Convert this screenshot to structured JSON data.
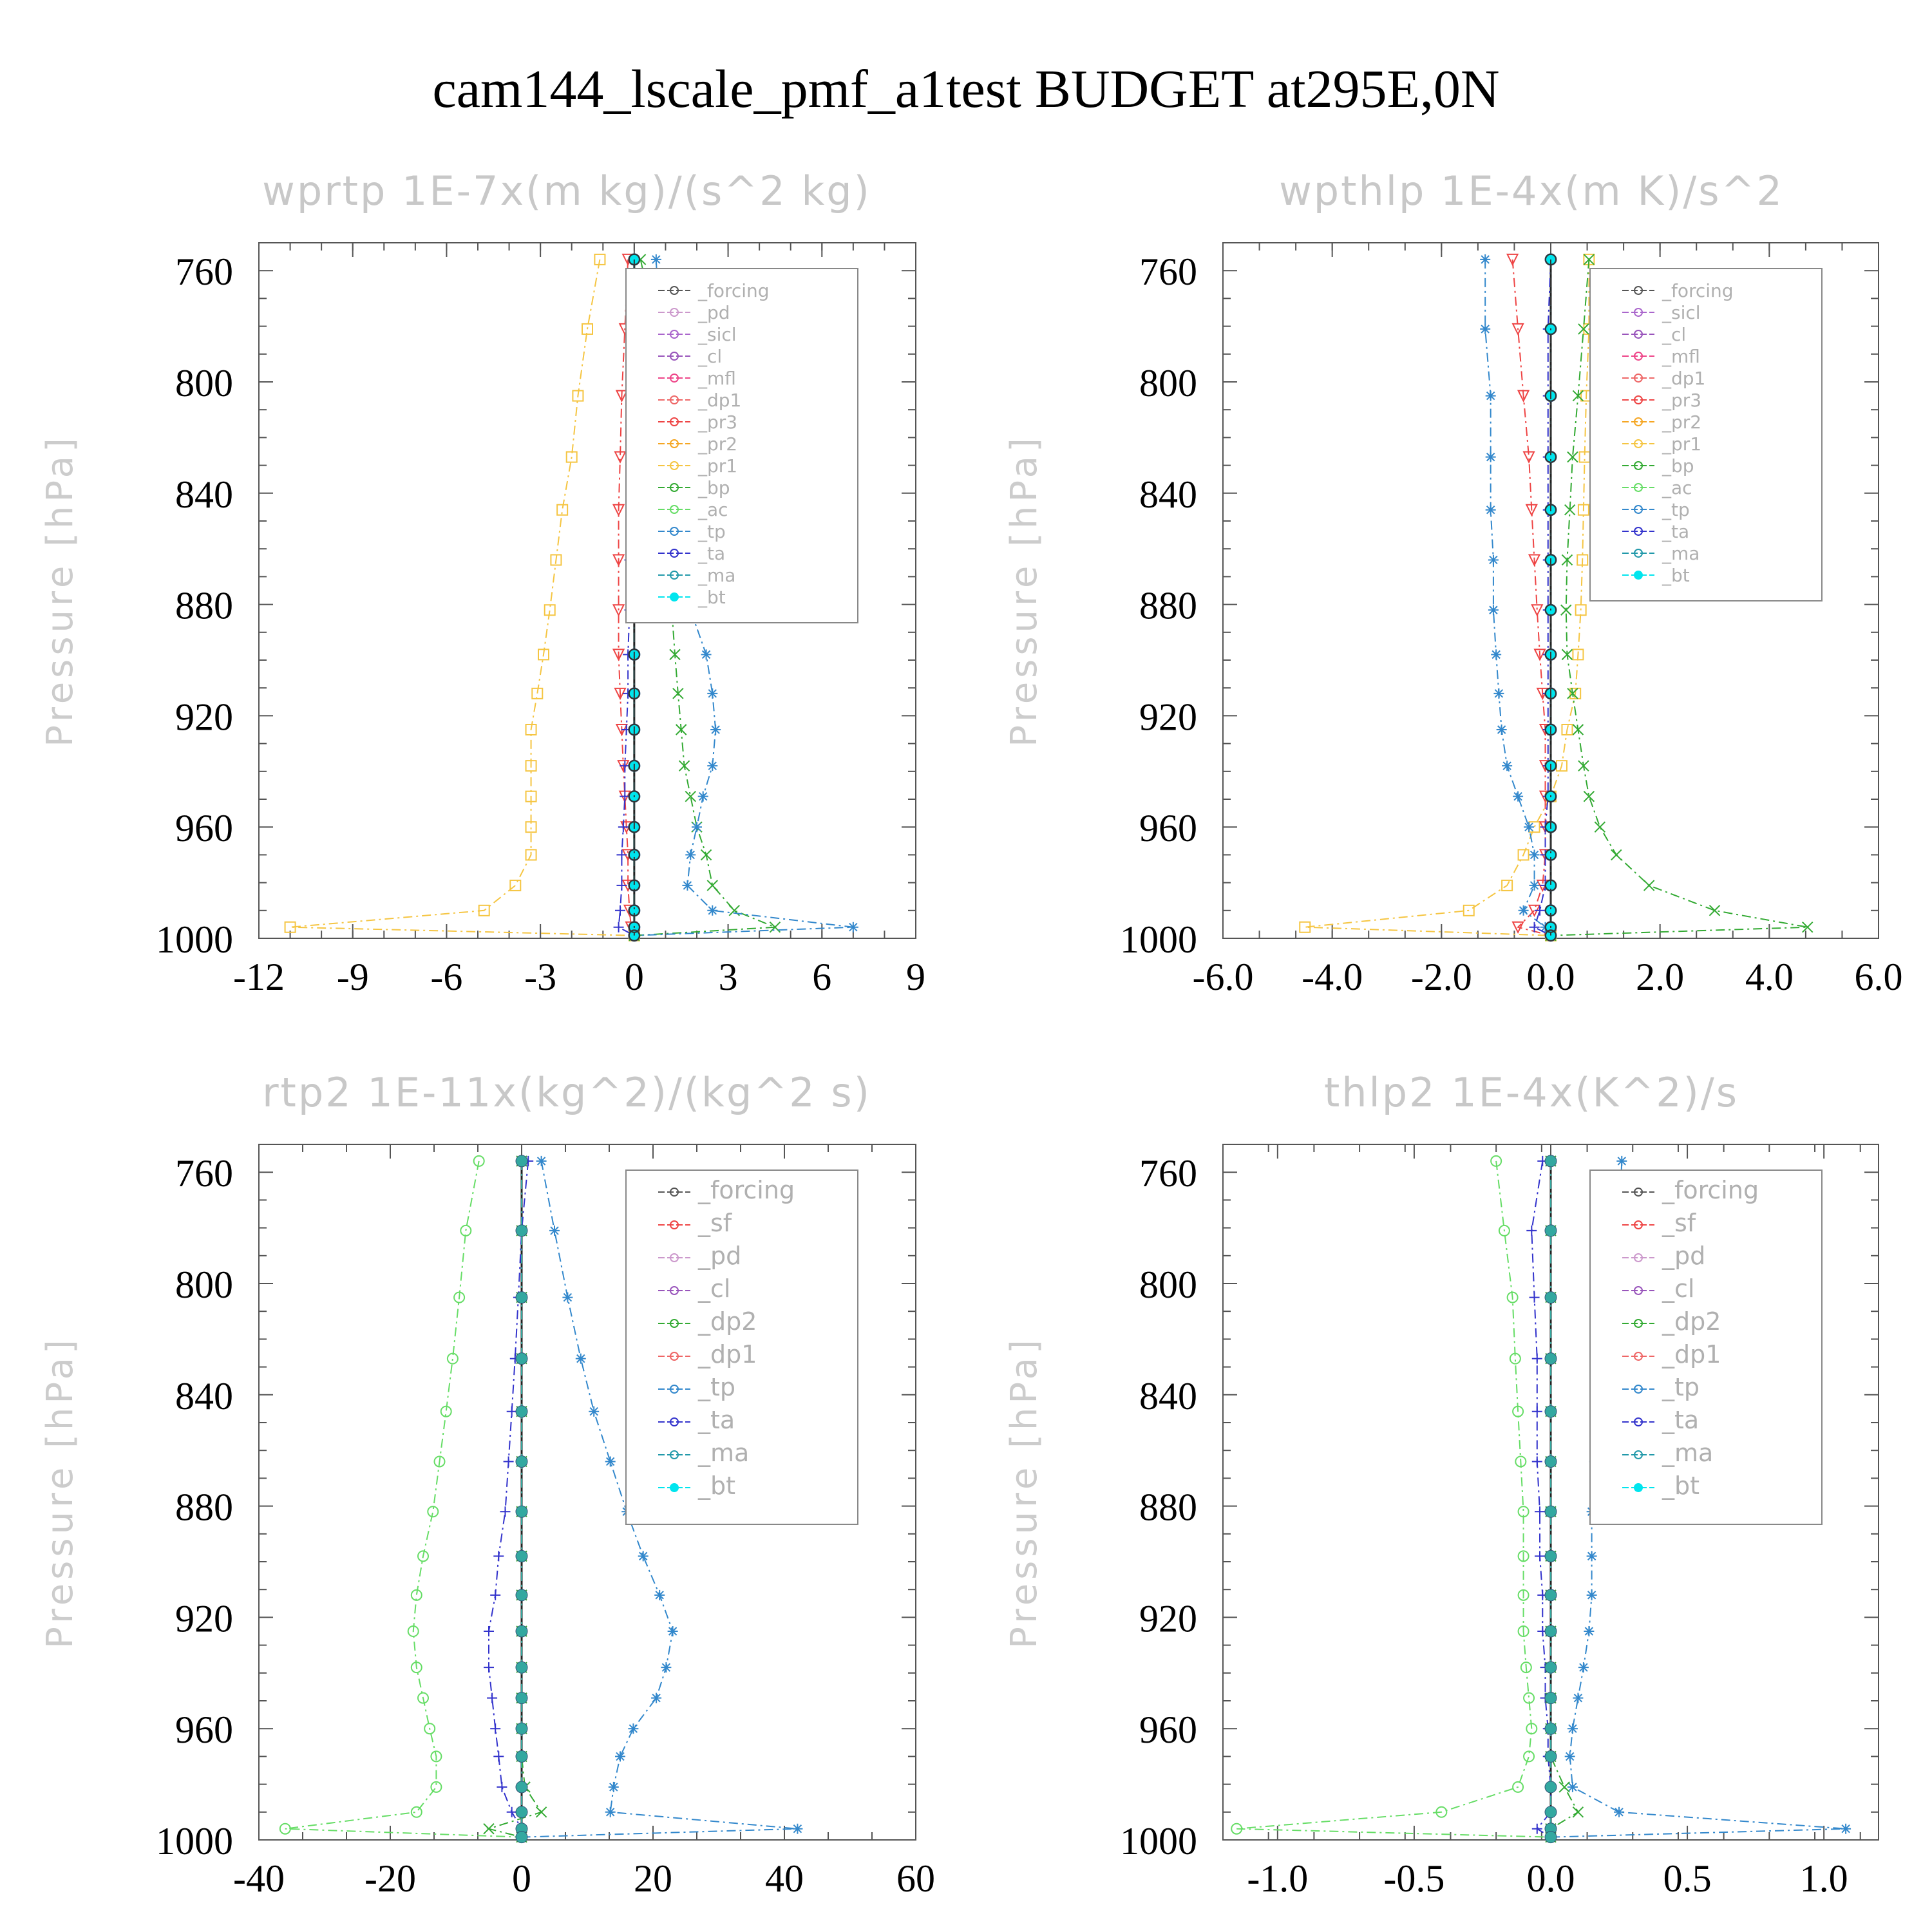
{
  "title": "cam144_lscale_pmf_a1test  BUDGET at295E,0N",
  "chart_data": [
    {
      "type": "line",
      "title": "wprtp   1E-7x(m kg)/(s^2 kg)",
      "ylabel": "Pressure [hPa]",
      "ylim": [
        1000,
        750
      ],
      "yticks": [
        "760",
        "800",
        "840",
        "880",
        "920",
        "960",
        "1000"
      ],
      "xlim": [
        -12,
        9
      ],
      "xticks": [
        "-12",
        "-9",
        "-6",
        "-3",
        "0",
        "3",
        "6",
        "9"
      ],
      "y": [
        756,
        781,
        805,
        827,
        846,
        864,
        882,
        898,
        912,
        925,
        938,
        949,
        960,
        970,
        981,
        990,
        996,
        999
      ],
      "legend": [
        "_forcing",
        "_pd",
        "_sicl",
        "_cl",
        "_mfl",
        "_dp1",
        "_pr3",
        "_pr2",
        "_pr1",
        "_bp",
        "_ac",
        "_tp",
        "_ta",
        "_ma",
        "_bt"
      ],
      "series": [
        {
          "name": "_pr1",
          "color": "#f5c542",
          "marker": "square",
          "values": [
            -1.1,
            -1.5,
            -1.8,
            -2.0,
            -2.3,
            -2.5,
            -2.7,
            -2.9,
            -3.1,
            -3.3,
            -3.3,
            -3.3,
            -3.3,
            -3.3,
            -3.8,
            -4.8,
            -11.0,
            0.0
          ]
        },
        {
          "name": "_pr3",
          "color": "#ee4444",
          "marker": "tri-down",
          "values": [
            -0.2,
            -0.3,
            -0.4,
            -0.45,
            -0.5,
            -0.5,
            -0.5,
            -0.5,
            -0.45,
            -0.4,
            -0.35,
            -0.3,
            -0.25,
            -0.2,
            -0.2,
            -0.15,
            -0.1,
            0.0
          ]
        },
        {
          "name": "_ta",
          "color": "#3333cc",
          "marker": "plus",
          "values": [
            0.0,
            0.0,
            -0.05,
            -0.1,
            -0.1,
            -0.15,
            -0.15,
            -0.2,
            -0.2,
            -0.25,
            -0.3,
            -0.3,
            -0.35,
            -0.4,
            -0.4,
            -0.45,
            -0.5,
            0.0
          ]
        },
        {
          "name": "_bp",
          "color": "#33aa33",
          "marker": "x",
          "values": [
            0.2,
            0.7,
            0.8,
            0.9,
            1.0,
            1.1,
            1.2,
            1.3,
            1.4,
            1.5,
            1.6,
            1.8,
            2.0,
            2.3,
            2.5,
            3.2,
            4.5,
            0.0
          ]
        },
        {
          "name": "_tp",
          "color": "#3388cc",
          "marker": "asterisk",
          "values": [
            0.7,
            0.8,
            0.9,
            1.0,
            1.3,
            1.5,
            1.8,
            2.3,
            2.5,
            2.6,
            2.5,
            2.2,
            2.0,
            1.8,
            1.7,
            2.5,
            7.0,
            0.0
          ]
        },
        {
          "name": "_bt",
          "color": "#00e5ee",
          "marker": "dot",
          "values": [
            0,
            0,
            0,
            0,
            0,
            0,
            0,
            0,
            0,
            0,
            0,
            0,
            0,
            0,
            0,
            0,
            0,
            0
          ]
        },
        {
          "name": "_forcing",
          "color": "#333333",
          "marker": "circle",
          "values": [
            0,
            0,
            0,
            0,
            0,
            0,
            0,
            0,
            0,
            0,
            0,
            0,
            0,
            0,
            0,
            0,
            0,
            0
          ]
        }
      ]
    },
    {
      "type": "line",
      "title": "wpthlp   1E-4x(m K)/s^2",
      "ylabel": "Pressure [hPa]",
      "ylim": [
        1000,
        750
      ],
      "yticks": [
        "760",
        "800",
        "840",
        "880",
        "920",
        "960",
        "1000"
      ],
      "xlim": [
        -6,
        6
      ],
      "xticks": [
        "-6.0",
        "-4.0",
        "-2.0",
        "0.0",
        "2.0",
        "4.0",
        "6.0"
      ],
      "y": [
        756,
        781,
        805,
        827,
        846,
        864,
        882,
        898,
        912,
        925,
        938,
        949,
        960,
        970,
        981,
        990,
        996,
        999
      ],
      "legend": [
        "_forcing",
        "_sicl",
        "_cl",
        "_mfl",
        "_dp1",
        "_pr3",
        "_pr2",
        "_pr1",
        "_bp",
        "_ac",
        "_tp",
        "_ta",
        "_ma",
        "_bt"
      ],
      "series": [
        {
          "name": "_pr1",
          "color": "#f5c542",
          "marker": "square",
          "values": [
            0.7,
            0.7,
            0.65,
            0.62,
            0.6,
            0.58,
            0.55,
            0.5,
            0.45,
            0.3,
            0.2,
            0.0,
            -0.3,
            -0.5,
            -0.8,
            -1.5,
            -4.5,
            0.0
          ]
        },
        {
          "name": "_pr3",
          "color": "#ee4444",
          "marker": "tri-down",
          "values": [
            -0.7,
            -0.6,
            -0.5,
            -0.4,
            -0.35,
            -0.3,
            -0.25,
            -0.2,
            -0.15,
            -0.1,
            -0.1,
            -0.1,
            -0.1,
            -0.1,
            -0.15,
            -0.3,
            -0.6,
            0.0
          ]
        },
        {
          "name": "_bp",
          "color": "#33aa33",
          "marker": "x",
          "values": [
            0.7,
            0.6,
            0.5,
            0.4,
            0.35,
            0.3,
            0.28,
            0.3,
            0.4,
            0.5,
            0.6,
            0.7,
            0.9,
            1.2,
            1.8,
            3.0,
            4.7,
            0.0
          ]
        },
        {
          "name": "_tp",
          "color": "#3388cc",
          "marker": "asterisk",
          "values": [
            -1.2,
            -1.2,
            -1.1,
            -1.1,
            -1.1,
            -1.05,
            -1.05,
            -1.0,
            -0.95,
            -0.9,
            -0.8,
            -0.6,
            -0.4,
            -0.3,
            -0.3,
            -0.5,
            -0.1,
            0.0
          ]
        },
        {
          "name": "_ta",
          "color": "#3333cc",
          "marker": "plus",
          "values": [
            0.0,
            -0.05,
            -0.05,
            -0.05,
            -0.05,
            -0.05,
            -0.05,
            -0.05,
            -0.05,
            -0.05,
            -0.05,
            -0.05,
            -0.1,
            -0.1,
            -0.1,
            -0.2,
            -0.3,
            0.0
          ]
        },
        {
          "name": "_bt",
          "color": "#00e5ee",
          "marker": "dot",
          "values": [
            0,
            0,
            0,
            0,
            0,
            0,
            0,
            0,
            0,
            0,
            0,
            0,
            0,
            0,
            0,
            0,
            0,
            0
          ]
        },
        {
          "name": "_forcing",
          "color": "#333333",
          "marker": "circle",
          "values": [
            0,
            0,
            0,
            0,
            0,
            0,
            0,
            0,
            0,
            0,
            0,
            0,
            0,
            0,
            0,
            0,
            0,
            0
          ]
        }
      ]
    },
    {
      "type": "line",
      "title": "rtp2   1E-11x(kg^2)/(kg^2 s)",
      "ylabel": "Pressure [hPa]",
      "ylim": [
        1000,
        750
      ],
      "yticks": [
        "760",
        "800",
        "840",
        "880",
        "920",
        "960",
        "1000"
      ],
      "xlim": [
        -40,
        60
      ],
      "xticks": [
        "-40",
        "-20",
        "0",
        "20",
        "40",
        "60"
      ],
      "y": [
        756,
        781,
        805,
        827,
        846,
        864,
        882,
        898,
        912,
        925,
        938,
        949,
        960,
        970,
        981,
        990,
        996,
        999
      ],
      "legend": [
        "_forcing",
        "_sf",
        "_pd",
        "_cl",
        "_dp2",
        "_dp1",
        "_tp",
        "_ta",
        "_ma",
        "_bt"
      ],
      "series": [
        {
          "name": "_dp1",
          "color": "#66dd66",
          "marker": "circle",
          "values": [
            -6.5,
            -8.5,
            -9.5,
            -10.5,
            -11.5,
            -12.5,
            -13.5,
            -15.0,
            -16.0,
            -16.5,
            -16.0,
            -15.0,
            -14.0,
            -13.0,
            -13.0,
            -16.0,
            -36.0,
            0.0
          ]
        },
        {
          "name": "_tp",
          "color": "#3388cc",
          "marker": "asterisk",
          "values": [
            3.0,
            5.0,
            7.0,
            9.0,
            11.0,
            13.5,
            16.0,
            18.5,
            21.0,
            23.0,
            22.0,
            20.5,
            17.0,
            15.0,
            14.0,
            13.5,
            42.0,
            0.0
          ]
        },
        {
          "name": "_ta",
          "color": "#3333cc",
          "marker": "plus",
          "values": [
            1.0,
            0.0,
            -0.5,
            -1.0,
            -1.5,
            -2.0,
            -2.5,
            -3.5,
            -4.0,
            -5.0,
            -5.0,
            -4.5,
            -4.0,
            -3.5,
            -3.0,
            -1.5,
            0.0,
            0.0
          ]
        },
        {
          "name": "_dp2",
          "color": "#33aa33",
          "marker": "x",
          "values": [
            0,
            0,
            0,
            0,
            0,
            0,
            0,
            0,
            0,
            0,
            0,
            0,
            0,
            0,
            0.5,
            3.0,
            -5.0,
            0.0
          ]
        },
        {
          "name": "_forcing",
          "color": "#cc3333",
          "marker": "diamond",
          "values": [
            0,
            0,
            0,
            0,
            0,
            0,
            0,
            0,
            0,
            0,
            0,
            0,
            0,
            0,
            0,
            0,
            0,
            0
          ]
        },
        {
          "name": "_bt",
          "color": "#33a8a0",
          "marker": "dot",
          "values": [
            0,
            0,
            0,
            0,
            0,
            0,
            0,
            0,
            0,
            0,
            0,
            0,
            0,
            0,
            0,
            0,
            0,
            0
          ]
        }
      ]
    },
    {
      "type": "line",
      "title": "thlp2   1E-4x(K^2)/s",
      "ylabel": "Pressure [hPa]",
      "ylim": [
        1000,
        750
      ],
      "yticks": [
        "760",
        "800",
        "840",
        "880",
        "920",
        "960",
        "1000"
      ],
      "xlim": [
        -1.2,
        1.2
      ],
      "xticks": [
        "-1.0",
        "-0.5",
        "0.0",
        "0.5",
        "1.0"
      ],
      "y": [
        756,
        781,
        805,
        827,
        846,
        864,
        882,
        898,
        912,
        925,
        938,
        949,
        960,
        970,
        981,
        990,
        996,
        999
      ],
      "legend": [
        "_forcing",
        "_sf",
        "_pd",
        "_cl",
        "_dp2",
        "_dp1",
        "_tp",
        "_ta",
        "_ma",
        "_bt"
      ],
      "series": [
        {
          "name": "_dp1",
          "color": "#66dd66",
          "marker": "circle",
          "values": [
            -0.2,
            -0.17,
            -0.14,
            -0.13,
            -0.12,
            -0.11,
            -0.1,
            -0.1,
            -0.1,
            -0.1,
            -0.09,
            -0.08,
            -0.07,
            -0.08,
            -0.12,
            -0.4,
            -1.15,
            0.0
          ]
        },
        {
          "name": "_tp",
          "color": "#3388cc",
          "marker": "asterisk",
          "values": [
            0.26,
            0.25,
            0.22,
            0.2,
            0.18,
            0.16,
            0.15,
            0.15,
            0.15,
            0.14,
            0.12,
            0.1,
            0.08,
            0.07,
            0.08,
            0.25,
            1.08,
            0.0
          ]
        },
        {
          "name": "_ta",
          "color": "#3333cc",
          "marker": "plus",
          "values": [
            -0.03,
            -0.07,
            -0.06,
            -0.05,
            -0.05,
            -0.05,
            -0.04,
            -0.04,
            -0.03,
            -0.03,
            -0.02,
            -0.02,
            -0.01,
            -0.01,
            0.0,
            0.0,
            -0.05,
            0.0
          ]
        },
        {
          "name": "_dp2",
          "color": "#33aa33",
          "marker": "x",
          "values": [
            0,
            0,
            0,
            0,
            0,
            0,
            0,
            0,
            0,
            0,
            0,
            0,
            0,
            0,
            0.05,
            0.1,
            0.0,
            0.0
          ]
        },
        {
          "name": "_forcing",
          "color": "#cc3333",
          "marker": "diamond",
          "values": [
            0,
            0,
            0,
            0,
            0,
            0,
            0,
            0,
            0,
            0,
            0,
            0,
            0,
            0,
            0,
            0,
            0,
            0
          ]
        },
        {
          "name": "_bt",
          "color": "#33a8a0",
          "marker": "dot",
          "values": [
            0,
            0,
            0,
            0,
            0,
            0,
            0,
            0,
            0,
            0,
            0,
            0,
            0,
            0,
            0,
            0,
            0,
            0
          ]
        }
      ]
    }
  ],
  "legend_colors": {
    "_forcing": "#555555",
    "_pd": "#cc99cc",
    "_sicl": "#aa66cc",
    "_cl": "#9955bb",
    "_mfl": "#ee4488",
    "_dp1": "#ee6666",
    "_pr3": "#ee4444",
    "_pr2": "#f5a623",
    "_pr1": "#f5c542",
    "_bp": "#33aa33",
    "_ac": "#66dd66",
    "_tp": "#3388cc",
    "_ta": "#3333cc",
    "_ma": "#2299aa",
    "_bt": "#00e5ee",
    "_sf": "#ee4444",
    "_dp2": "#33aa33"
  }
}
